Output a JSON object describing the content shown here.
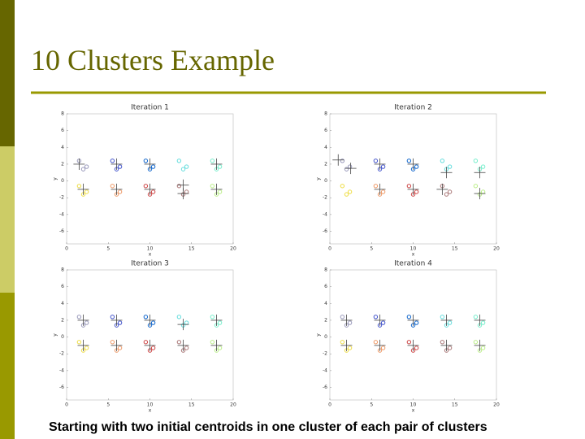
{
  "title": "10 Clusters Example",
  "caption": "Starting with two initial centroids in one cluster of each pair of clusters",
  "chart_data": [
    {
      "type": "scatter",
      "title": "Iteration 1",
      "xlabel": "x",
      "ylabel": "y",
      "xlim": [
        0,
        20
      ],
      "ylim": [
        -7.5,
        8
      ],
      "xticks": [
        0,
        5,
        10,
        15,
        20
      ],
      "yticks": [
        8,
        6,
        4,
        2,
        0,
        -2,
        -4,
        -6
      ],
      "series": [
        {
          "color": "#9999bb",
          "x": [
            1.5,
            2.4,
            2.0
          ],
          "y": [
            2.4,
            1.7,
            1.4
          ]
        },
        {
          "color": "#4455cc",
          "x": [
            5.5,
            6.4,
            6.0
          ],
          "y": [
            2.4,
            1.7,
            1.4
          ]
        },
        {
          "color": "#1166cc",
          "x": [
            9.5,
            10.4,
            10.0
          ],
          "y": [
            2.4,
            1.7,
            1.4
          ]
        },
        {
          "color": "#66dddd",
          "x": [
            13.5,
            14.4,
            14.0
          ],
          "y": [
            2.4,
            1.7,
            1.4
          ]
        },
        {
          "color": "#77eecc",
          "x": [
            17.5,
            18.4,
            18.0
          ],
          "y": [
            2.4,
            1.7,
            1.4
          ]
        },
        {
          "color": "#eedd44",
          "x": [
            1.5,
            2.4,
            2.0
          ],
          "y": [
            -0.6,
            -1.3,
            -1.6
          ]
        },
        {
          "color": "#ee9966",
          "x": [
            5.5,
            6.4,
            6.0
          ],
          "y": [
            -0.6,
            -1.3,
            -1.6
          ]
        },
        {
          "color": "#cc4444",
          "x": [
            9.5,
            10.4,
            10.0
          ],
          "y": [
            -0.6,
            -1.3,
            -1.6
          ]
        },
        {
          "color": "#aa7777",
          "x": [
            13.5,
            14.4,
            14.0
          ],
          "y": [
            -0.6,
            -1.3,
            -1.6
          ]
        },
        {
          "color": "#bbee88",
          "x": [
            17.5,
            18.4,
            18.0
          ],
          "y": [
            -0.6,
            -1.3,
            -1.6
          ]
        },
        {
          "color": "#444444",
          "marker": "+",
          "x": [
            1.5,
            2,
            6,
            6,
            10,
            10,
            14,
            14,
            18,
            18
          ],
          "y": [
            2,
            -1,
            2,
            -1,
            2,
            -1,
            -0.5,
            -1.5,
            2,
            -1
          ]
        }
      ]
    },
    {
      "type": "scatter",
      "title": "Iteration 2",
      "xlabel": "x",
      "ylabel": "y",
      "xlim": [
        0,
        20
      ],
      "ylim": [
        -7.5,
        8
      ],
      "xticks": [
        0,
        5,
        10,
        15,
        20
      ],
      "yticks": [
        8,
        6,
        4,
        2,
        0,
        -2,
        -4,
        -6
      ],
      "series": [
        {
          "color": "#9999bb",
          "x": [
            1.5,
            2.4,
            2.0
          ],
          "y": [
            2.4,
            1.7,
            1.4
          ]
        },
        {
          "color": "#4455cc",
          "x": [
            5.5,
            6.4,
            6.0
          ],
          "y": [
            2.4,
            1.7,
            1.4
          ]
        },
        {
          "color": "#1166cc",
          "x": [
            9.5,
            10.4,
            10.0
          ],
          "y": [
            2.4,
            1.7,
            1.4
          ]
        },
        {
          "color": "#66dddd",
          "x": [
            13.5,
            14.4,
            14.0
          ],
          "y": [
            2.4,
            1.7,
            1.4
          ]
        },
        {
          "color": "#77eecc",
          "x": [
            17.5,
            18.4,
            18.0
          ],
          "y": [
            2.4,
            1.7,
            1.4
          ]
        },
        {
          "color": "#eedd44",
          "x": [
            1.5,
            2.4,
            2.0
          ],
          "y": [
            -0.6,
            -1.3,
            -1.6
          ]
        },
        {
          "color": "#ee9966",
          "x": [
            5.5,
            6.4,
            6.0
          ],
          "y": [
            -0.6,
            -1.3,
            -1.6
          ]
        },
        {
          "color": "#cc4444",
          "x": [
            9.5,
            10.4,
            10.0
          ],
          "y": [
            -0.6,
            -1.3,
            -1.6
          ]
        },
        {
          "color": "#aa7777",
          "x": [
            13.5,
            14.4,
            14.0
          ],
          "y": [
            -0.6,
            -1.3,
            -1.6
          ]
        },
        {
          "color": "#bbee88",
          "x": [
            17.5,
            18.4,
            18.0
          ],
          "y": [
            -0.6,
            -1.3,
            -1.6
          ]
        },
        {
          "color": "#444444",
          "marker": "+",
          "x": [
            1,
            2.5,
            6,
            6,
            10,
            10,
            14,
            13.5,
            18,
            18
          ],
          "y": [
            2.5,
            1.5,
            2,
            -1,
            2,
            -1,
            1,
            -1,
            1,
            -1.5
          ]
        }
      ]
    },
    {
      "type": "scatter",
      "title": "Iteration 3",
      "xlabel": "x",
      "ylabel": "y",
      "xlim": [
        0,
        20
      ],
      "ylim": [
        -7.5,
        8
      ],
      "xticks": [
        0,
        5,
        10,
        15,
        20
      ],
      "yticks": [
        8,
        6,
        4,
        2,
        0,
        -2,
        -4,
        -6
      ],
      "series": [
        {
          "color": "#9999bb",
          "x": [
            1.5,
            2.4,
            2.0
          ],
          "y": [
            2.4,
            1.7,
            1.4
          ]
        },
        {
          "color": "#4455cc",
          "x": [
            5.5,
            6.4,
            6.0
          ],
          "y": [
            2.4,
            1.7,
            1.4
          ]
        },
        {
          "color": "#1166cc",
          "x": [
            9.5,
            10.4,
            10.0
          ],
          "y": [
            2.4,
            1.7,
            1.4
          ]
        },
        {
          "color": "#66dddd",
          "x": [
            13.5,
            14.4,
            14.0
          ],
          "y": [
            2.4,
            1.7,
            1.4
          ]
        },
        {
          "color": "#77eecc",
          "x": [
            17.5,
            18.4,
            18.0
          ],
          "y": [
            2.4,
            1.7,
            1.4
          ]
        },
        {
          "color": "#eedd44",
          "x": [
            1.5,
            2.4,
            2.0
          ],
          "y": [
            -0.6,
            -1.3,
            -1.6
          ]
        },
        {
          "color": "#ee9966",
          "x": [
            5.5,
            6.4,
            6.0
          ],
          "y": [
            -0.6,
            -1.3,
            -1.6
          ]
        },
        {
          "color": "#cc4444",
          "x": [
            9.5,
            10.4,
            10.0
          ],
          "y": [
            -0.6,
            -1.3,
            -1.6
          ]
        },
        {
          "color": "#aa7777",
          "x": [
            13.5,
            14.4,
            14.0
          ],
          "y": [
            -0.6,
            -1.3,
            -1.6
          ]
        },
        {
          "color": "#bbee88",
          "x": [
            17.5,
            18.4,
            18.0
          ],
          "y": [
            -0.6,
            -1.3,
            -1.6
          ]
        },
        {
          "color": "#444444",
          "marker": "+",
          "x": [
            2,
            2,
            6,
            6,
            10,
            10,
            14,
            14,
            18,
            18
          ],
          "y": [
            2,
            -1,
            2,
            -1,
            2,
            -1,
            1.5,
            -1,
            2,
            -1
          ]
        }
      ]
    },
    {
      "type": "scatter",
      "title": "Iteration 4",
      "xlabel": "x",
      "ylabel": "y",
      "xlim": [
        0,
        20
      ],
      "ylim": [
        -7.5,
        8
      ],
      "xticks": [
        0,
        5,
        10,
        15,
        20
      ],
      "yticks": [
        8,
        6,
        4,
        2,
        0,
        -2,
        -4,
        -6
      ],
      "series": [
        {
          "color": "#9999bb",
          "x": [
            1.5,
            2.4,
            2.0
          ],
          "y": [
            2.4,
            1.7,
            1.4
          ]
        },
        {
          "color": "#4455cc",
          "x": [
            5.5,
            6.4,
            6.0
          ],
          "y": [
            2.4,
            1.7,
            1.4
          ]
        },
        {
          "color": "#1166cc",
          "x": [
            9.5,
            10.4,
            10.0
          ],
          "y": [
            2.4,
            1.7,
            1.4
          ]
        },
        {
          "color": "#66dddd",
          "x": [
            13.5,
            14.4,
            14.0
          ],
          "y": [
            2.4,
            1.7,
            1.4
          ]
        },
        {
          "color": "#77eecc",
          "x": [
            17.5,
            18.4,
            18.0
          ],
          "y": [
            2.4,
            1.7,
            1.4
          ]
        },
        {
          "color": "#eedd44",
          "x": [
            1.5,
            2.4,
            2.0
          ],
          "y": [
            -0.6,
            -1.3,
            -1.6
          ]
        },
        {
          "color": "#ee9966",
          "x": [
            5.5,
            6.4,
            6.0
          ],
          "y": [
            -0.6,
            -1.3,
            -1.6
          ]
        },
        {
          "color": "#cc4444",
          "x": [
            9.5,
            10.4,
            10.0
          ],
          "y": [
            -0.6,
            -1.3,
            -1.6
          ]
        },
        {
          "color": "#aa7777",
          "x": [
            13.5,
            14.4,
            14.0
          ],
          "y": [
            -0.6,
            -1.3,
            -1.6
          ]
        },
        {
          "color": "#bbee88",
          "x": [
            17.5,
            18.4,
            18.0
          ],
          "y": [
            -0.6,
            -1.3,
            -1.6
          ]
        },
        {
          "color": "#444444",
          "marker": "+",
          "x": [
            2,
            2,
            6,
            6,
            10,
            10,
            14,
            14,
            18,
            18
          ],
          "y": [
            2,
            -1,
            2,
            -1,
            2,
            -1,
            2,
            -1,
            2,
            -1
          ]
        }
      ]
    }
  ]
}
